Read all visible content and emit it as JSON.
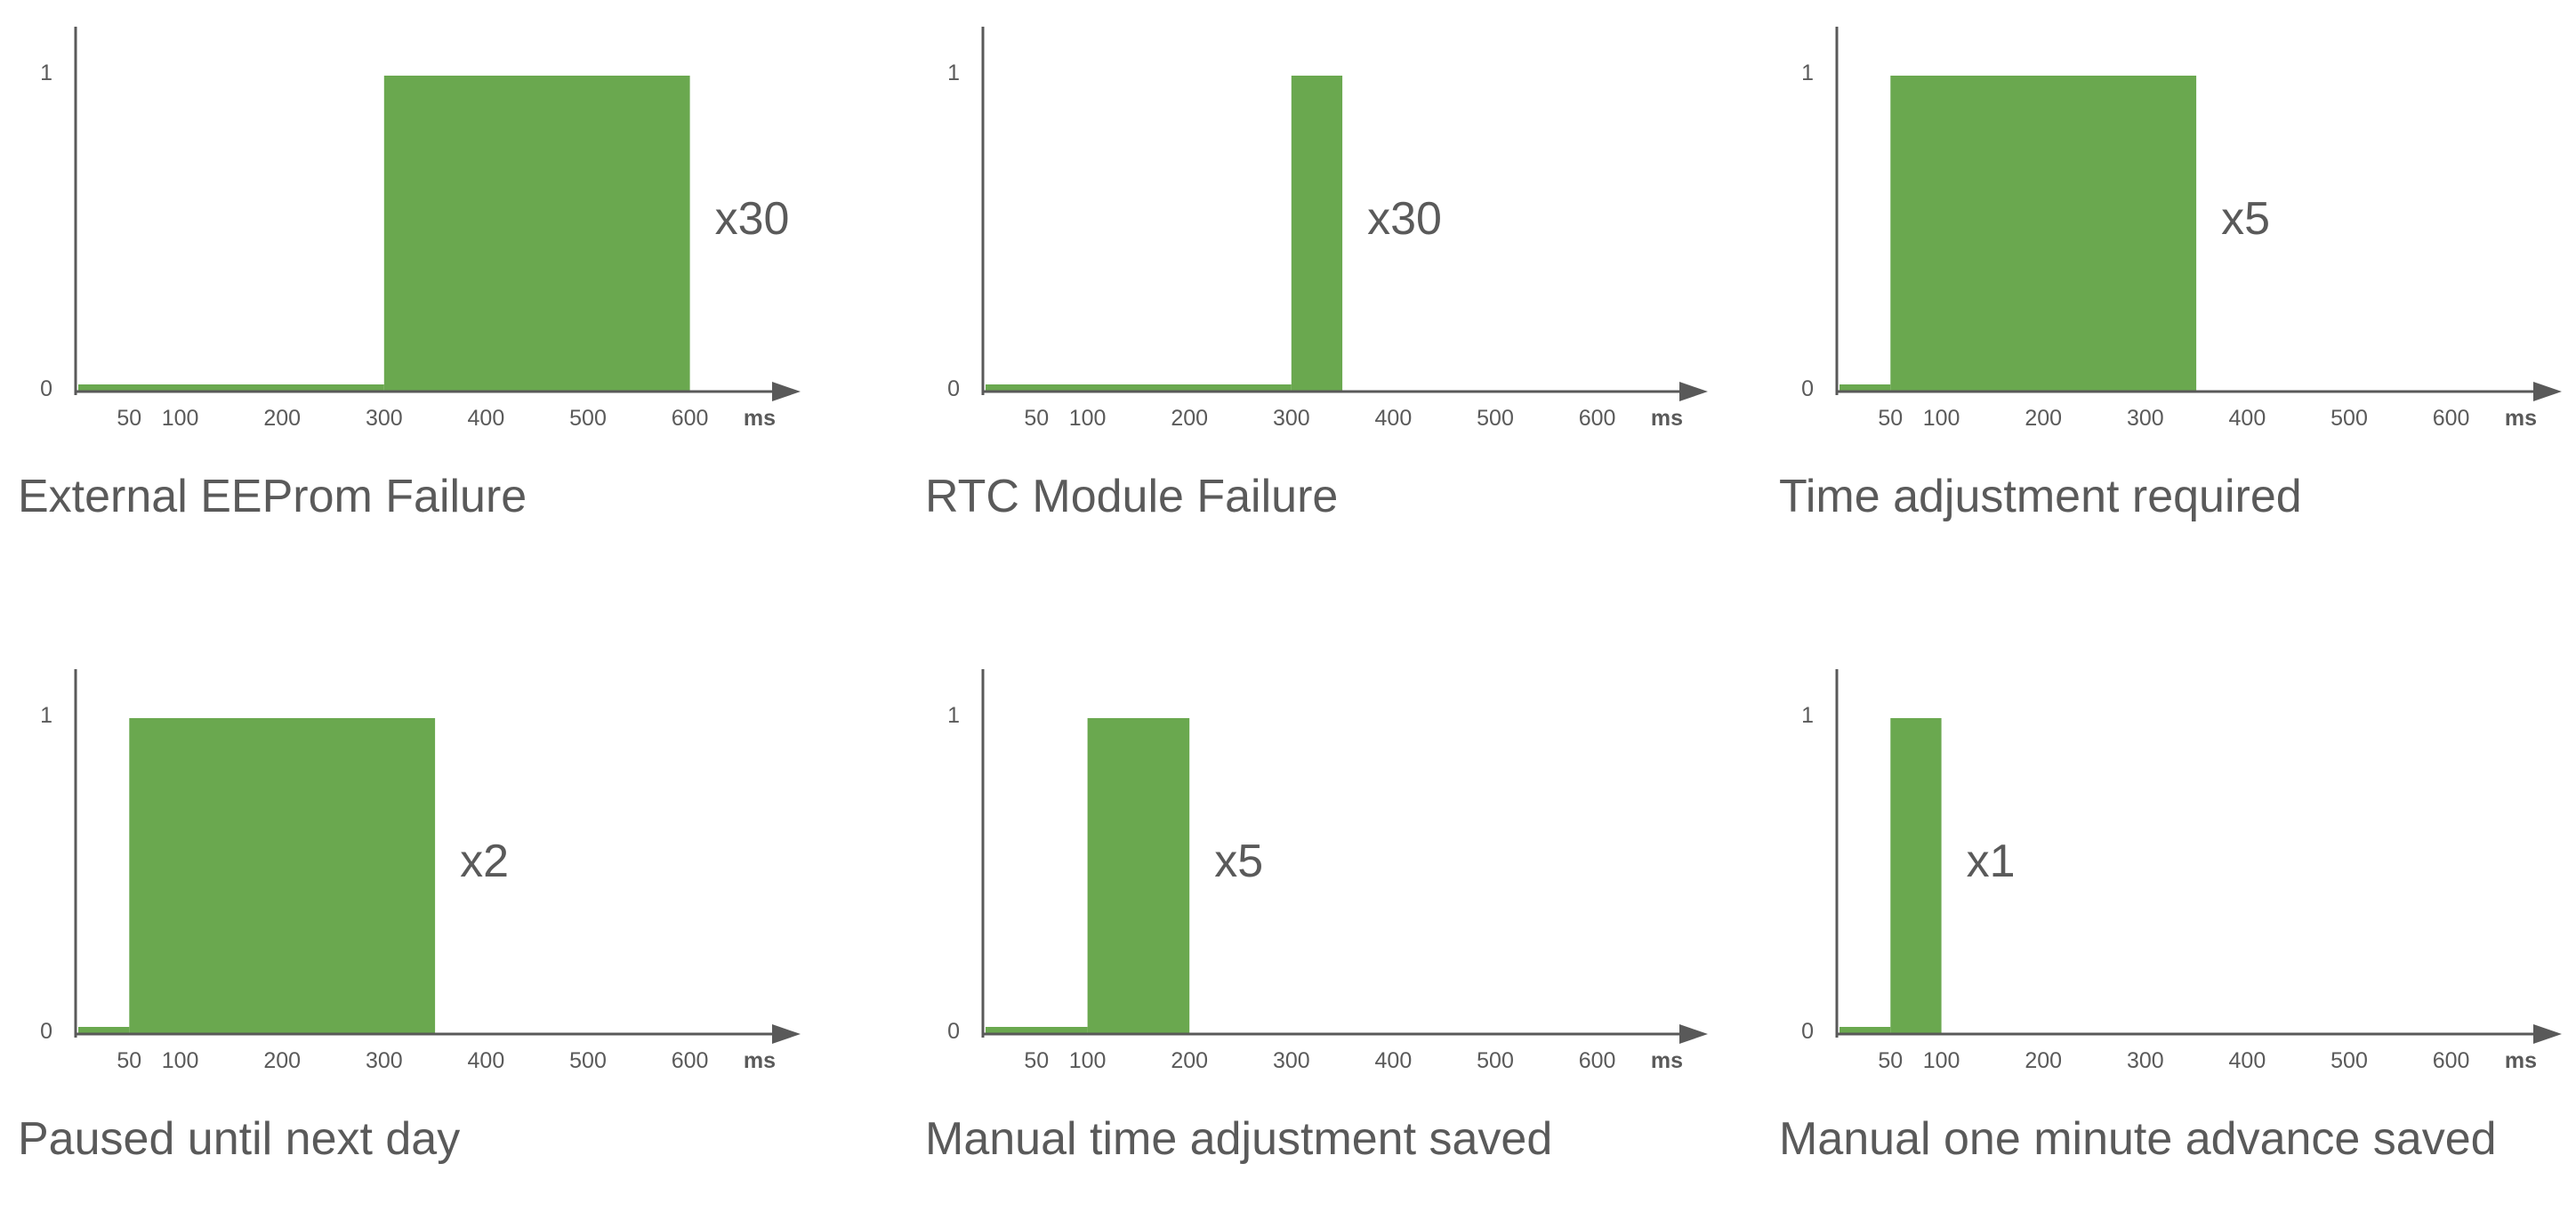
{
  "colors": {
    "signal": "#6aa84f",
    "axis": "#595959",
    "text": "#5a5a5a"
  },
  "chart_data": [
    {
      "type": "area",
      "title": "External EEProm Failure",
      "x_unit": "ms",
      "x_ticks": [
        50,
        100,
        200,
        300,
        400,
        500,
        600
      ],
      "y_ticks": [
        0,
        1
      ],
      "xlim": [
        0,
        680
      ],
      "ylim": [
        0,
        1.2
      ],
      "series": [
        {
          "x": [
            0,
            300,
            300,
            600,
            600
          ],
          "y": [
            0,
            0,
            1,
            1,
            0
          ]
        }
      ],
      "annotation": "x30"
    },
    {
      "type": "area",
      "title": "RTC Module Failure",
      "x_unit": "ms",
      "x_ticks": [
        50,
        100,
        200,
        300,
        400,
        500,
        600
      ],
      "y_ticks": [
        0,
        1
      ],
      "xlim": [
        0,
        680
      ],
      "ylim": [
        0,
        1.2
      ],
      "series": [
        {
          "x": [
            0,
            300,
            300,
            350,
            350
          ],
          "y": [
            0,
            0,
            1,
            1,
            0
          ]
        }
      ],
      "annotation": "x30"
    },
    {
      "type": "area",
      "title": "Time adjustment required",
      "x_unit": "ms",
      "x_ticks": [
        50,
        100,
        200,
        300,
        400,
        500,
        600
      ],
      "y_ticks": [
        0,
        1
      ],
      "xlim": [
        0,
        680
      ],
      "ylim": [
        0,
        1.2
      ],
      "series": [
        {
          "x": [
            0,
            50,
            50,
            350,
            350
          ],
          "y": [
            0,
            0,
            1,
            1,
            0
          ]
        }
      ],
      "annotation": "x5"
    },
    {
      "type": "area",
      "title": "Paused until next day",
      "x_unit": "ms",
      "x_ticks": [
        50,
        100,
        200,
        300,
        400,
        500,
        600
      ],
      "y_ticks": [
        0,
        1
      ],
      "xlim": [
        0,
        680
      ],
      "ylim": [
        0,
        1.2
      ],
      "series": [
        {
          "x": [
            0,
            50,
            50,
            350,
            350
          ],
          "y": [
            0,
            0,
            1,
            1,
            0
          ]
        }
      ],
      "annotation": "x2"
    },
    {
      "type": "area",
      "title": "Manual time adjustment saved",
      "x_unit": "ms",
      "x_ticks": [
        50,
        100,
        200,
        300,
        400,
        500,
        600
      ],
      "y_ticks": [
        0,
        1
      ],
      "xlim": [
        0,
        680
      ],
      "ylim": [
        0,
        1.2
      ],
      "series": [
        {
          "x": [
            0,
            100,
            100,
            200,
            200
          ],
          "y": [
            0,
            0,
            1,
            1,
            0
          ]
        }
      ],
      "annotation": "x5"
    },
    {
      "type": "area",
      "title": "Manual one minute advance saved",
      "x_unit": "ms",
      "x_ticks": [
        50,
        100,
        200,
        300,
        400,
        500,
        600
      ],
      "y_ticks": [
        0,
        1
      ],
      "xlim": [
        0,
        680
      ],
      "ylim": [
        0,
        1.2
      ],
      "series": [
        {
          "x": [
            0,
            50,
            50,
            100,
            100
          ],
          "y": [
            0,
            0,
            1,
            1,
            0
          ]
        }
      ],
      "annotation": "x1"
    }
  ]
}
